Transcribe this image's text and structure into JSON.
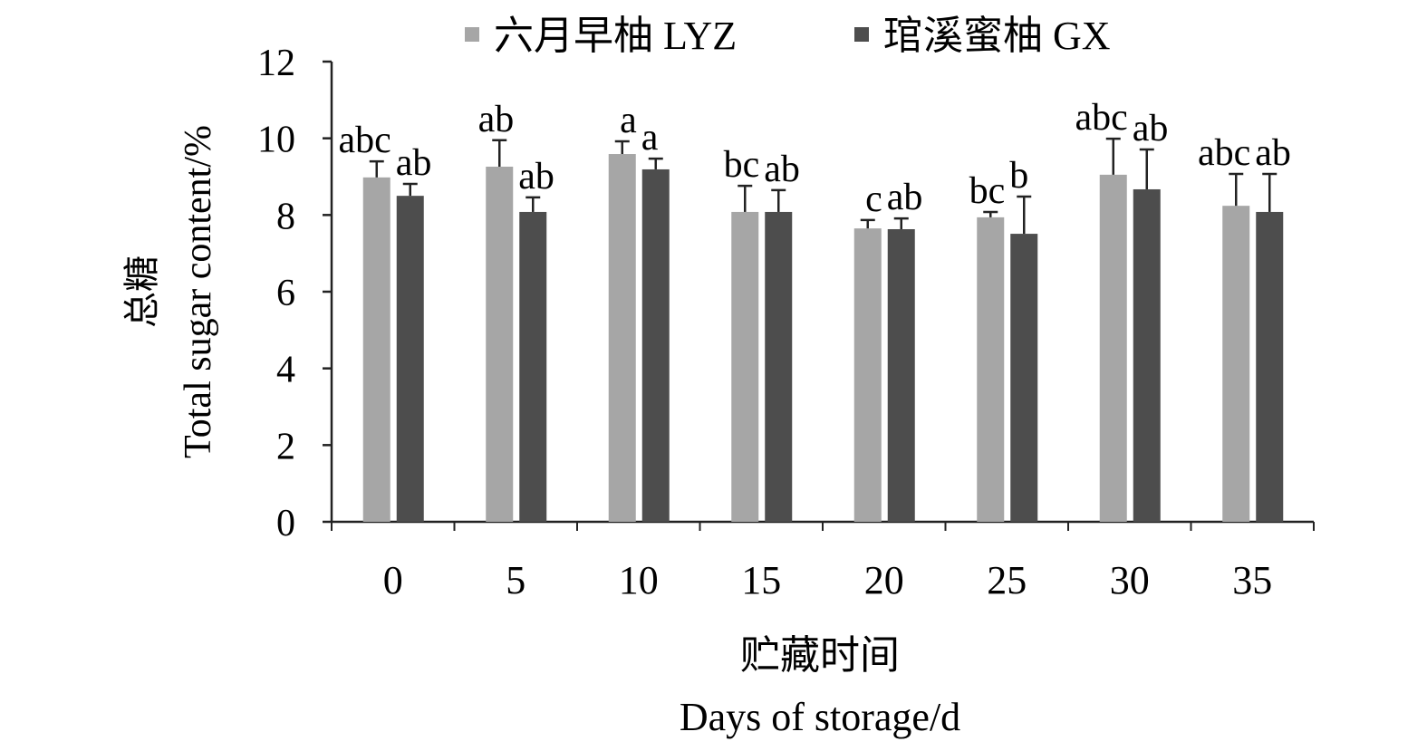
{
  "chart_data": {
    "type": "bar",
    "categories": [
      "0",
      "5",
      "10",
      "15",
      "20",
      "25",
      "30",
      "35"
    ],
    "series": [
      {
        "name": "六月早柚 LYZ",
        "color": "#a6a6a6",
        "values": [
          8.98,
          9.26,
          9.59,
          8.08,
          7.65,
          7.94,
          9.05,
          8.24
        ],
        "errors": [
          0.42,
          0.69,
          0.33,
          0.68,
          0.22,
          0.14,
          0.94,
          0.83
        ],
        "letters": [
          "abc",
          "ab",
          "a",
          "bc",
          "c",
          "bc",
          "abc",
          "abc"
        ]
      },
      {
        "name": "琯溪蜜柚 GX",
        "color": "#4d4d4d",
        "values": [
          8.5,
          8.08,
          9.19,
          8.08,
          7.63,
          7.51,
          8.67,
          8.08
        ],
        "errors": [
          0.31,
          0.38,
          0.28,
          0.57,
          0.28,
          0.97,
          1.04,
          0.99
        ],
        "letters": [
          "ab",
          "ab",
          "a",
          "ab",
          "ab",
          "b",
          "ab",
          "ab"
        ]
      }
    ],
    "ylabel_cn": "总糖",
    "ylabel": "Total sugar content/%",
    "xlabel_cn": "贮藏时间",
    "xlabel": "Days of storage/d",
    "ylim": [
      0,
      12
    ],
    "yticks": [
      "0",
      "2",
      "4",
      "6",
      "8",
      "10",
      "12"
    ],
    "grid": false,
    "legend": "top"
  }
}
